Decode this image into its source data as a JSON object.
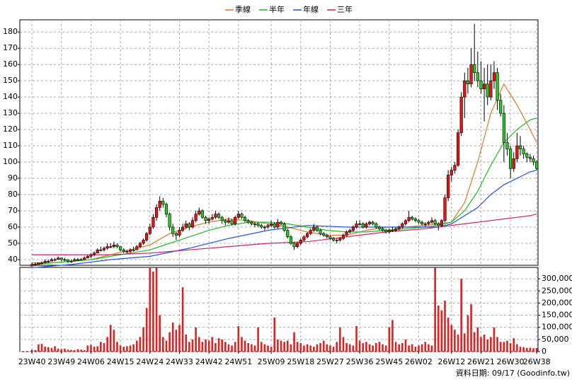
{
  "chart_data": {
    "type": "candlestick",
    "legend_position": "top",
    "grid": true,
    "source": "資料日期: 09/17  (Goodinfo.tw)",
    "xlim": [
      -3.7,
      154.4
    ],
    "xticks": [
      {
        "value": 0,
        "label": "23W40"
      },
      {
        "value": 9,
        "label": "23W49"
      },
      {
        "value": 18,
        "label": "24W06"
      },
      {
        "value": 27,
        "label": "24W15"
      },
      {
        "value": 36,
        "label": "24W24"
      },
      {
        "value": 45,
        "label": "24W33"
      },
      {
        "value": 54,
        "label": "24W42"
      },
      {
        "value": 63,
        "label": "24W51"
      },
      {
        "value": 73,
        "label": "25W09"
      },
      {
        "value": 82,
        "label": "25W18"
      },
      {
        "value": 91,
        "label": "25W27"
      },
      {
        "value": 100,
        "label": "25W36"
      },
      {
        "value": 109,
        "label": "25W45"
      },
      {
        "value": 118,
        "label": "26W02"
      },
      {
        "value": 128,
        "label": "26W12"
      },
      {
        "value": 137,
        "label": "26W21"
      },
      {
        "value": 146,
        "label": "26W30"
      },
      {
        "value": 154,
        "label": "26W38"
      }
    ],
    "ylim": [
      36.5,
      187.5
    ],
    "yticks": [
      40,
      50,
      60,
      70,
      80,
      90,
      100,
      110,
      120,
      130,
      140,
      150,
      160,
      170,
      180
    ],
    "candles": {
      "up_color": "#ee1111",
      "down_color": "#22cc22",
      "ohlc": [
        [
          36,
          38,
          36,
          37
        ],
        [
          37,
          38,
          36,
          37
        ],
        [
          37,
          38,
          37,
          38
        ],
        [
          38,
          39,
          37,
          38
        ],
        [
          38,
          40,
          38,
          39
        ],
        [
          39,
          40,
          38,
          39
        ],
        [
          39,
          41,
          39,
          40
        ],
        [
          40,
          41,
          39,
          40
        ],
        [
          40,
          42,
          40,
          41
        ],
        [
          41,
          41,
          39,
          40
        ],
        [
          40,
          41,
          39,
          40
        ],
        [
          40,
          40,
          38,
          39
        ],
        [
          39,
          40,
          38,
          39
        ],
        [
          39,
          41,
          39,
          40
        ],
        [
          40,
          41,
          39,
          40
        ],
        [
          40,
          41,
          40,
          40
        ],
        [
          40,
          42,
          40,
          41
        ],
        [
          41,
          43,
          41,
          42
        ],
        [
          42,
          44,
          41,
          43
        ],
        [
          43,
          45,
          42,
          44
        ],
        [
          44,
          47,
          44,
          46
        ],
        [
          46,
          48,
          45,
          46
        ],
        [
          46,
          48,
          45,
          47
        ],
        [
          47,
          50,
          46,
          48
        ],
        [
          48,
          50,
          47,
          48
        ],
        [
          48,
          51,
          47,
          49
        ],
        [
          49,
          50,
          47,
          48
        ],
        [
          48,
          48,
          45,
          46
        ],
        [
          46,
          47,
          44,
          45
        ],
        [
          45,
          46,
          44,
          45
        ],
        [
          45,
          47,
          44,
          46
        ],
        [
          46,
          48,
          45,
          46
        ],
        [
          46,
          49,
          46,
          48
        ],
        [
          48,
          51,
          47,
          50
        ],
        [
          50,
          53,
          49,
          52
        ],
        [
          52,
          57,
          51,
          56
        ],
        [
          56,
          62,
          55,
          60
        ],
        [
          60,
          68,
          59,
          66
        ],
        [
          66,
          74,
          64,
          72
        ],
        [
          72,
          79,
          70,
          76
        ],
        [
          76,
          78,
          72,
          74
        ],
        [
          74,
          75,
          66,
          68
        ],
        [
          68,
          69,
          58,
          60
        ],
        [
          60,
          62,
          54,
          56
        ],
        [
          56,
          57,
          52,
          55
        ],
        [
          55,
          60,
          54,
          58
        ],
        [
          58,
          62,
          57,
          60
        ],
        [
          60,
          64,
          59,
          62
        ],
        [
          62,
          63,
          58,
          60
        ],
        [
          60,
          66,
          59,
          64
        ],
        [
          64,
          70,
          63,
          68
        ],
        [
          68,
          72,
          67,
          70
        ],
        [
          70,
          71,
          65,
          66
        ],
        [
          66,
          67,
          62,
          64
        ],
        [
          64,
          66,
          62,
          65
        ],
        [
          65,
          68,
          64,
          66
        ],
        [
          66,
          70,
          65,
          68
        ],
        [
          68,
          69,
          65,
          66
        ],
        [
          66,
          67,
          62,
          64
        ],
        [
          64,
          65,
          61,
          63
        ],
        [
          63,
          66,
          62,
          64
        ],
        [
          64,
          65,
          61,
          62
        ],
        [
          62,
          67,
          61,
          66
        ],
        [
          66,
          70,
          65,
          68
        ],
        [
          68,
          69,
          65,
          66
        ],
        [
          66,
          67,
          63,
          64
        ],
        [
          64,
          65,
          62,
          63
        ],
        [
          63,
          64,
          61,
          62
        ],
        [
          62,
          63,
          60,
          62
        ],
        [
          62,
          63,
          60,
          61
        ],
        [
          61,
          62,
          59,
          60
        ],
        [
          60,
          61,
          58,
          60
        ],
        [
          60,
          62,
          59,
          61
        ],
        [
          61,
          64,
          60,
          62
        ],
        [
          62,
          63,
          59,
          60
        ],
        [
          60,
          65,
          59,
          63
        ],
        [
          63,
          64,
          61,
          62
        ],
        [
          62,
          63,
          57,
          58
        ],
        [
          58,
          59,
          53,
          54
        ],
        [
          54,
          55,
          49,
          50
        ],
        [
          50,
          51,
          46,
          48
        ],
        [
          48,
          51,
          47,
          50
        ],
        [
          50,
          53,
          49,
          52
        ],
        [
          52,
          55,
          51,
          54
        ],
        [
          54,
          57,
          53,
          56
        ],
        [
          56,
          59,
          55,
          58
        ],
        [
          58,
          62,
          57,
          60
        ],
        [
          60,
          61,
          57,
          58
        ],
        [
          58,
          59,
          55,
          56
        ],
        [
          56,
          57,
          54,
          55
        ],
        [
          55,
          56,
          53,
          54
        ],
        [
          54,
          55,
          52,
          53
        ],
        [
          53,
          54,
          51,
          52
        ],
        [
          52,
          53,
          50,
          52
        ],
        [
          52,
          54,
          51,
          53
        ],
        [
          53,
          56,
          52,
          55
        ],
        [
          55,
          58,
          54,
          57
        ],
        [
          57,
          59,
          56,
          58
        ],
        [
          58,
          61,
          57,
          60
        ],
        [
          60,
          64,
          59,
          62
        ],
        [
          62,
          64,
          61,
          62
        ],
        [
          62,
          63,
          59,
          60
        ],
        [
          60,
          63,
          59,
          62
        ],
        [
          62,
          64,
          61,
          63
        ],
        [
          63,
          64,
          61,
          62
        ],
        [
          62,
          63,
          59,
          60
        ],
        [
          60,
          61,
          58,
          59
        ],
        [
          59,
          60,
          57,
          58
        ],
        [
          58,
          59,
          56,
          57
        ],
        [
          57,
          59,
          56,
          58
        ],
        [
          58,
          60,
          57,
          58
        ],
        [
          58,
          60,
          57,
          59
        ],
        [
          59,
          61,
          58,
          60
        ],
        [
          60,
          63,
          59,
          62
        ],
        [
          62,
          65,
          61,
          64
        ],
        [
          64,
          70,
          63,
          66
        ],
        [
          66,
          67,
          64,
          65
        ],
        [
          65,
          66,
          63,
          64
        ],
        [
          64,
          65,
          62,
          63
        ],
        [
          63,
          64,
          61,
          62
        ],
        [
          62,
          63,
          60,
          62
        ],
        [
          62,
          64,
          61,
          63
        ],
        [
          63,
          66,
          62,
          64
        ],
        [
          64,
          65,
          61,
          62
        ],
        [
          62,
          63,
          58,
          61
        ],
        [
          61,
          65,
          60,
          64
        ],
        [
          64,
          80,
          63,
          78
        ],
        [
          78,
          95,
          76,
          92
        ],
        [
          92,
          97,
          88,
          95
        ],
        [
          95,
          100,
          93,
          98
        ],
        [
          98,
          120,
          97,
          118
        ],
        [
          118,
          143,
          116,
          140
        ],
        [
          140,
          155,
          127,
          150
        ],
        [
          150,
          158,
          142,
          148
        ],
        [
          148,
          170,
          146,
          160
        ],
        [
          160,
          185,
          150,
          155
        ],
        [
          155,
          168,
          146,
          150
        ],
        [
          150,
          162,
          142,
          145
        ],
        [
          145,
          158,
          125,
          148
        ],
        [
          148,
          160,
          135,
          140
        ],
        [
          140,
          160,
          138,
          150
        ],
        [
          150,
          162,
          145,
          155
        ],
        [
          155,
          158,
          132,
          138
        ],
        [
          138,
          142,
          128,
          130
        ],
        [
          130,
          135,
          100,
          112
        ],
        [
          112,
          118,
          104,
          108
        ],
        [
          108,
          110,
          90,
          96
        ],
        [
          96,
          106,
          94,
          102
        ],
        [
          102,
          118,
          100,
          110
        ],
        [
          110,
          116,
          104,
          108
        ],
        [
          108,
          110,
          102,
          105
        ],
        [
          105,
          106,
          100,
          103
        ],
        [
          103,
          105,
          100,
          102
        ],
        [
          102,
          104,
          98,
          100
        ],
        [
          100,
          101,
          95,
          96
        ]
      ]
    },
    "series": [
      {
        "name": "季線",
        "color": "#e07828",
        "x": [
          0,
          6,
          12,
          18,
          24,
          30,
          36,
          42,
          48,
          54,
          60,
          66,
          72,
          78,
          84,
          90,
          96,
          102,
          108,
          114,
          120,
          124,
          128,
          132,
          136,
          140,
          144,
          148,
          152,
          154
        ],
        "values": [
          38,
          38,
          39,
          40,
          43,
          46,
          49,
          56,
          60,
          63,
          65,
          64,
          62,
          60,
          57,
          55,
          55,
          58,
          60,
          60,
          61,
          62,
          63,
          75,
          100,
          130,
          148,
          135,
          120,
          112
        ]
      },
      {
        "name": "半年",
        "color": "#22bb22",
        "x": [
          0,
          6,
          12,
          18,
          24,
          30,
          36,
          42,
          48,
          54,
          60,
          66,
          72,
          78,
          84,
          90,
          96,
          102,
          108,
          114,
          120,
          124,
          128,
          132,
          136,
          140,
          144,
          148,
          152,
          154
        ],
        "values": [
          37,
          38,
          39,
          40,
          42,
          44,
          46,
          50,
          54,
          58,
          61,
          63,
          63,
          62,
          60,
          58,
          57,
          57,
          58,
          59,
          60,
          61,
          63,
          70,
          82,
          98,
          112,
          120,
          126,
          127
        ]
      },
      {
        "name": "年線",
        "color": "#2255dd",
        "x": [
          0,
          12,
          24,
          36,
          48,
          60,
          72,
          84,
          96,
          108,
          120,
          124,
          128,
          132,
          136,
          140,
          144,
          148,
          152,
          154
        ],
        "values": [
          35,
          37,
          40,
          42,
          47,
          53,
          58,
          61,
          60,
          60,
          60,
          60,
          62,
          67,
          72,
          80,
          86,
          90,
          94,
          95
        ]
      },
      {
        "name": "三年",
        "color": "#cc2266",
        "x": [
          0,
          24,
          36,
          48,
          60,
          72,
          84,
          96,
          108,
          120,
          128,
          132,
          136,
          140,
          144,
          148,
          152,
          154
        ],
        "values": [
          43,
          43,
          44,
          46,
          48,
          50,
          51,
          54,
          57,
          59,
          61,
          62,
          63,
          64,
          65,
          66,
          67,
          68
        ]
      }
    ],
    "volume": {
      "color": "#dd2222",
      "ylim": [
        0,
        347000
      ],
      "yticks": [
        0,
        {
          "value": 50000,
          "label": "50,000"
        },
        {
          "value": 100000,
          "label": "100,000"
        },
        {
          "value": 150000,
          "label": "150,000"
        },
        {
          "value": 200000,
          "label": "200,000"
        },
        {
          "value": 250000,
          "label": "250,000"
        },
        {
          "value": 300000,
          "label": "300,000"
        }
      ],
      "values": [
        8000,
        6000,
        30000,
        32000,
        20000,
        18000,
        15000,
        22000,
        12000,
        10000,
        12000,
        8000,
        7000,
        6000,
        10000,
        8000,
        6000,
        25000,
        28000,
        20000,
        22000,
        40000,
        35000,
        60000,
        110000,
        90000,
        40000,
        25000,
        20000,
        22000,
        25000,
        30000,
        45000,
        60000,
        100000,
        180000,
        345000,
        330000,
        345000,
        150000,
        60000,
        45000,
        80000,
        120000,
        90000,
        110000,
        265000,
        70000,
        40000,
        50000,
        100000,
        60000,
        40000,
        50000,
        45000,
        60000,
        35000,
        55000,
        50000,
        40000,
        30000,
        25000,
        40000,
        105000,
        60000,
        45000,
        35000,
        30000,
        25000,
        100000,
        40000,
        30000,
        25000,
        20000,
        140000,
        50000,
        45000,
        40000,
        45000,
        30000,
        80000,
        40000,
        35000,
        25000,
        30000,
        25000,
        20000,
        30000,
        35000,
        45000,
        30000,
        25000,
        20000,
        40000,
        100000,
        60000,
        35000,
        30000,
        25000,
        105000,
        45000,
        35000,
        40000,
        30000,
        25000,
        35000,
        40000,
        30000,
        25000,
        100000,
        130000,
        40000,
        30000,
        35000,
        50000,
        25000,
        30000,
        20000,
        25000,
        30000,
        40000,
        30000,
        25000,
        345000,
        190000,
        170000,
        210000,
        140000,
        110000,
        90000,
        70000,
        300000,
        75000,
        150000,
        195000,
        80000,
        100000,
        60000,
        70000,
        50000,
        60000,
        100000,
        60000,
        40000,
        40000,
        45000,
        35000,
        55000,
        30000,
        20000,
        18000,
        15000,
        16000,
        14000,
        15000
      ]
    }
  }
}
